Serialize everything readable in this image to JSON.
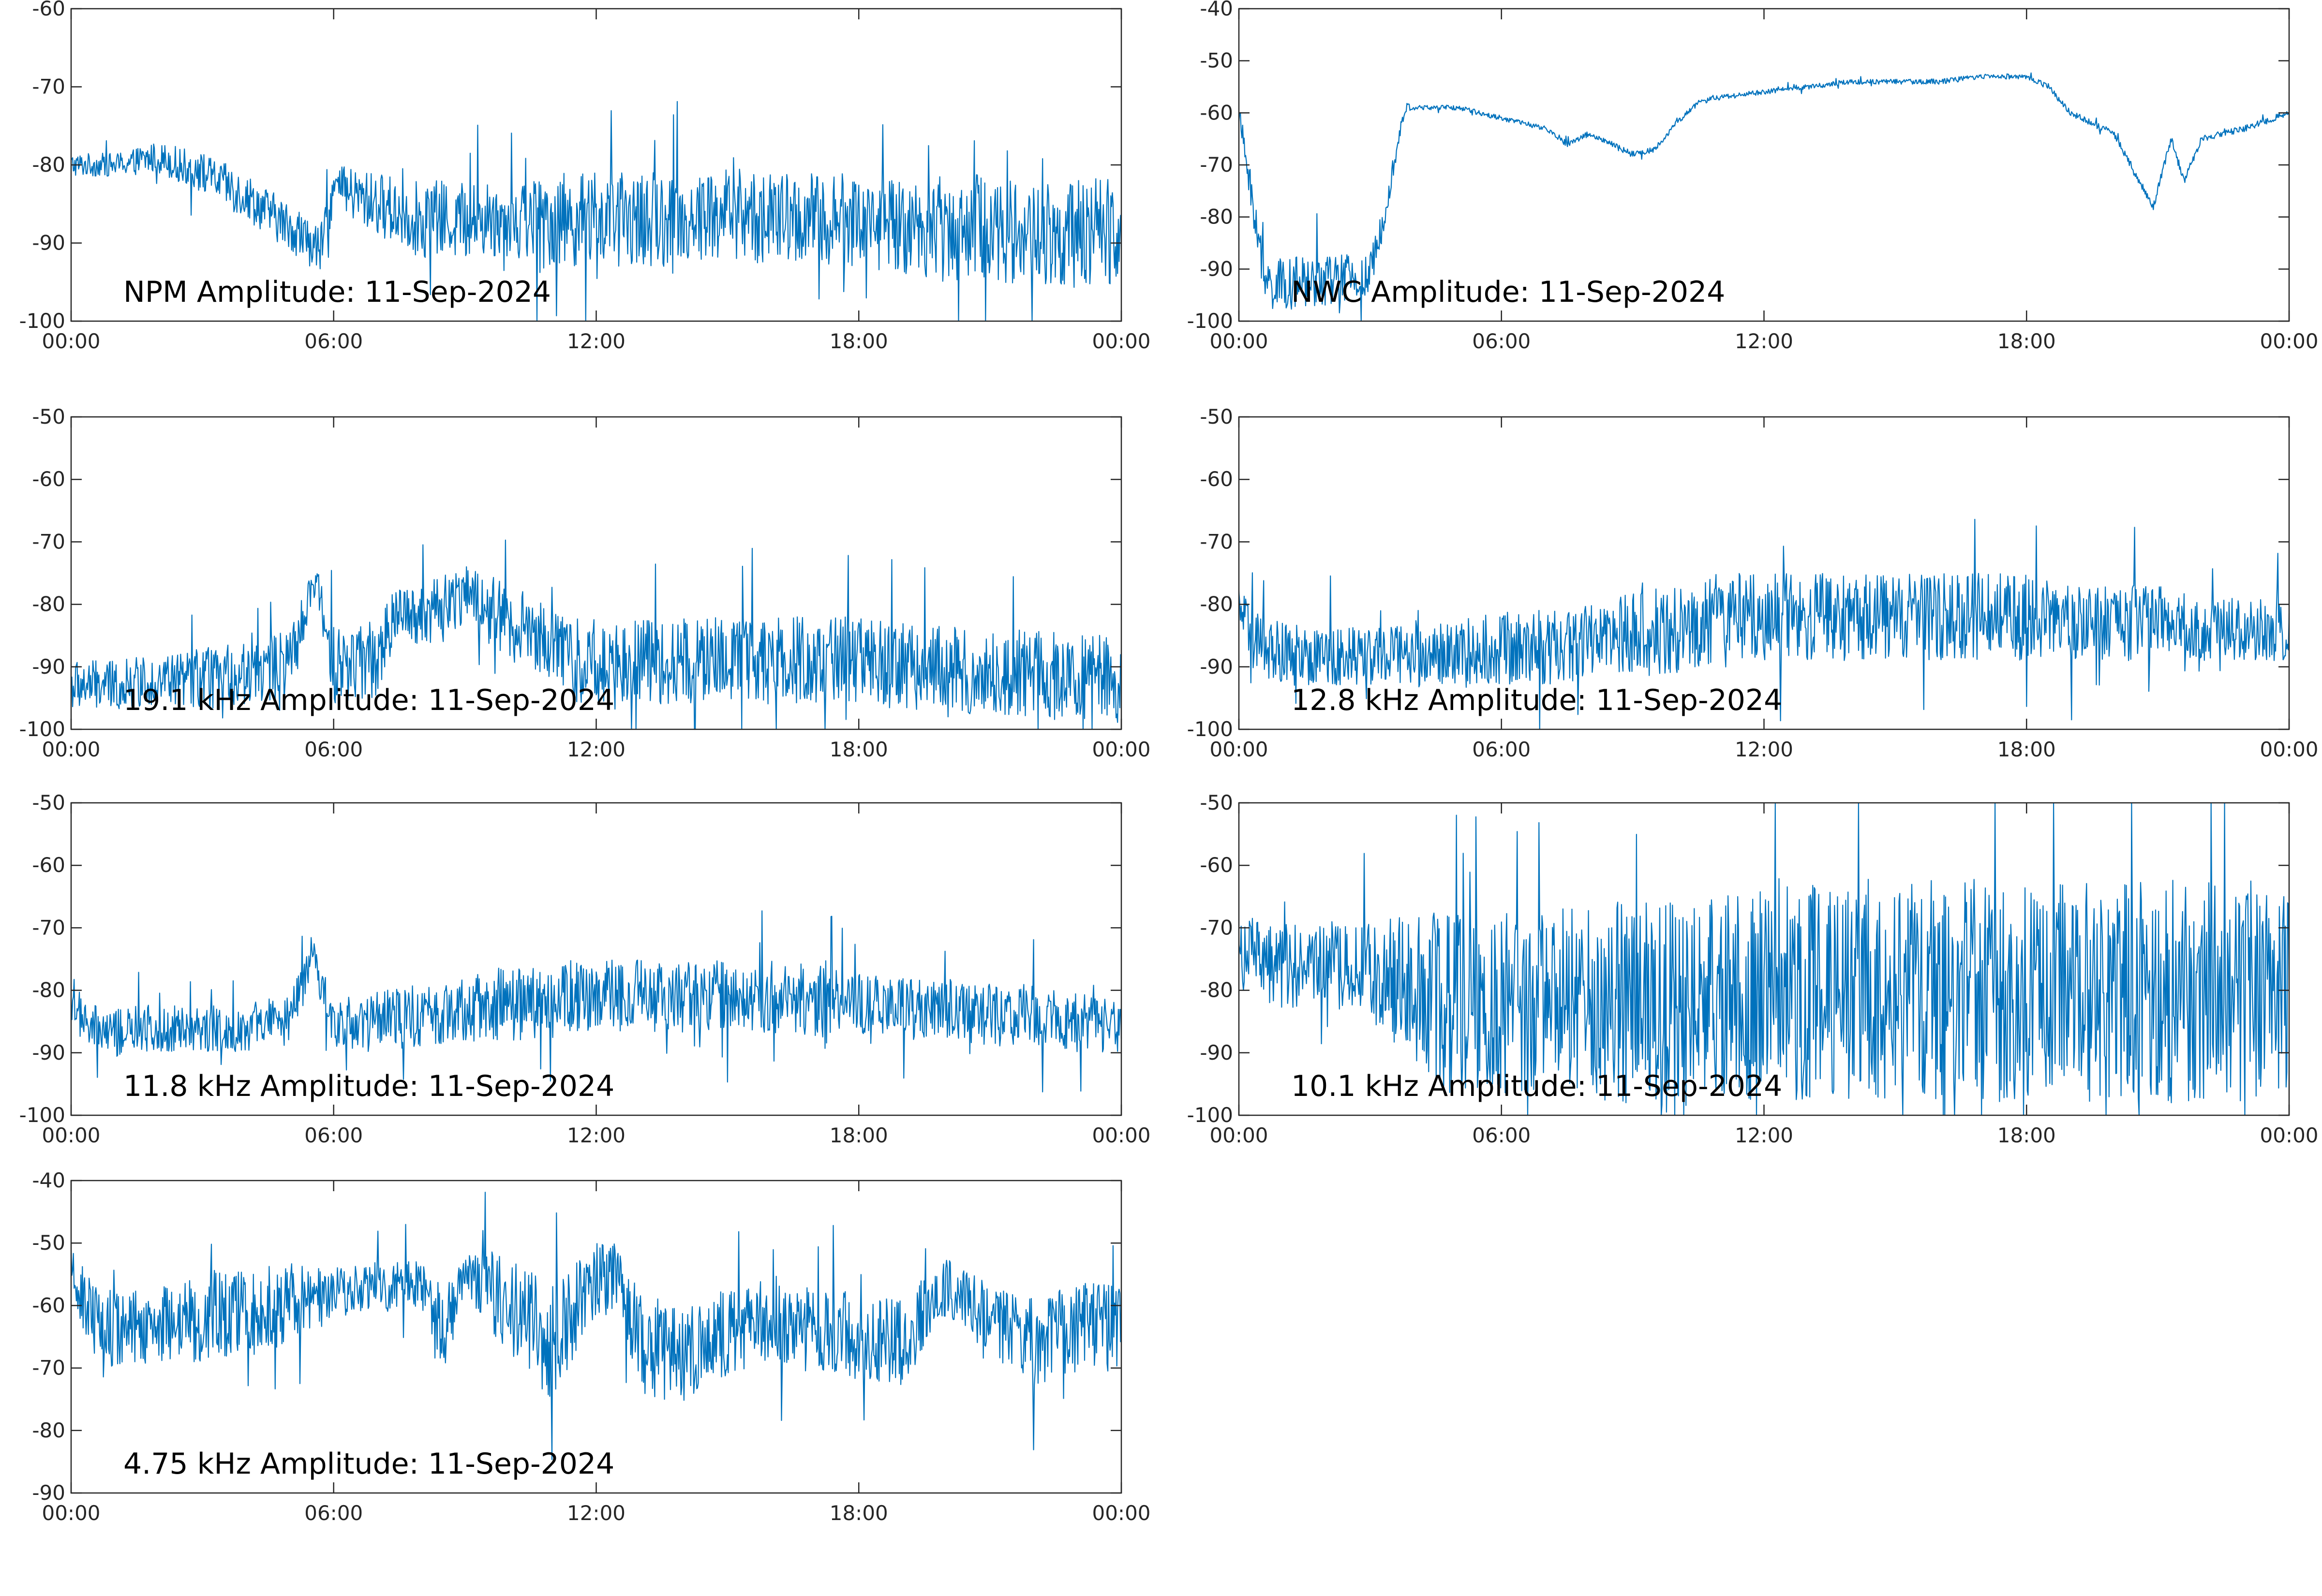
{
  "chart_data": [
    {
      "type": "line",
      "title": "NPM Amplitude: 11-Sep-2024",
      "x_ticks": [
        "00:00",
        "06:00",
        "12:00",
        "18:00",
        "00:00"
      ],
      "x_range_hours": [
        0,
        24
      ],
      "ylim": [
        -100,
        -60
      ],
      "y_ticks": [
        -60,
        -70,
        -80,
        -90,
        -100
      ],
      "series": [
        {
          "color": "#0072BD",
          "x": [
            0,
            1,
            2,
            3,
            4,
            5,
            5.7,
            6,
            7,
            8,
            9,
            10,
            11,
            12,
            13,
            14,
            15,
            16,
            17,
            18,
            19,
            20,
            21,
            22,
            23,
            24
          ],
          "y": [
            -80,
            -80,
            -79,
            -81,
            -84,
            -88,
            -91,
            -83,
            -85,
            -87,
            -87,
            -87,
            -87,
            -87,
            -87,
            -87,
            -86,
            -87,
            -87,
            -87,
            -88,
            -88,
            -88,
            -89,
            -89,
            -88
          ],
          "spread": [
            1.5,
            1.5,
            2,
            2.5,
            3,
            3,
            3,
            3,
            4,
            5,
            5,
            5,
            6,
            6,
            6,
            6,
            6,
            6,
            6,
            6,
            6,
            7,
            7,
            7,
            7,
            7
          ]
        }
      ]
    },
    {
      "type": "line",
      "title": "NWC Amplitude: 11-Sep-2024",
      "x_ticks": [
        "00:00",
        "06:00",
        "12:00",
        "18:00",
        "00:00"
      ],
      "x_range_hours": [
        0,
        24
      ],
      "ylim": [
        -100,
        -40
      ],
      "y_ticks": [
        -40,
        -50,
        -60,
        -70,
        -80,
        -90,
        -100
      ],
      "series": [
        {
          "color": "#0072BD",
          "x": [
            0,
            0.6,
            1,
            2,
            3,
            3.8,
            4,
            5,
            6,
            7,
            7.5,
            8,
            9,
            9.5,
            10,
            10.5,
            11,
            12,
            13,
            14,
            15,
            16,
            17,
            18,
            18.5,
            19,
            20,
            20.5,
            20.9,
            21.3,
            21.6,
            22,
            23,
            24
          ],
          "y": [
            -60,
            -93,
            -93,
            -92,
            -92,
            -59,
            -59,
            -59,
            -61,
            -63,
            -66,
            -64,
            -68,
            -67,
            -62,
            -58,
            -57,
            -56,
            -55,
            -54,
            -54,
            -54,
            -53,
            -53,
            -55,
            -60,
            -64,
            -72,
            -78,
            -65,
            -73,
            -65,
            -63,
            -60
          ],
          "spread": [
            2,
            5,
            5,
            5,
            5,
            1,
            0.5,
            0.5,
            0.5,
            0.5,
            0.6,
            0.6,
            0.6,
            0.5,
            0.5,
            0.5,
            0.5,
            0.5,
            0.5,
            0.5,
            0.5,
            0.5,
            0.5,
            0.5,
            0.6,
            0.6,
            0.6,
            0.8,
            0.8,
            0.8,
            0.8,
            0.6,
            0.6,
            0.6
          ]
        }
      ]
    },
    {
      "type": "line",
      "title": "19.1 kHz Amplitude: 11-Sep-2024",
      "x_ticks": [
        "00:00",
        "06:00",
        "12:00",
        "18:00",
        "00:00"
      ],
      "x_range_hours": [
        0,
        24
      ],
      "ylim": [
        -100,
        -50
      ],
      "y_ticks": [
        -50,
        -60,
        -70,
        -80,
        -90,
        -100
      ],
      "series": [
        {
          "color": "#0072BD",
          "x": [
            0,
            1,
            2,
            3,
            4,
            5,
            5.6,
            6,
            7,
            7.5,
            8,
            9,
            10,
            11,
            11.5,
            12,
            13,
            14,
            15,
            16,
            17,
            18,
            19,
            20,
            21,
            22,
            23,
            24
          ],
          "y": [
            -93,
            -93,
            -92,
            -92,
            -91,
            -90,
            -76,
            -90,
            -89,
            -80,
            -82,
            -78,
            -83,
            -86,
            -89,
            -89,
            -89,
            -89,
            -89,
            -89,
            -89,
            -89,
            -90,
            -90,
            -91,
            -91,
            -92,
            -92
          ],
          "spread": [
            4,
            4,
            4,
            5,
            5,
            6,
            3,
            6,
            6,
            4,
            5,
            5,
            6,
            6,
            7,
            7,
            7,
            7,
            7,
            7,
            7,
            7,
            7,
            7,
            7,
            7,
            7,
            7
          ]
        }
      ]
    },
    {
      "type": "line",
      "title": "12.8 kHz Amplitude: 11-Sep-2024",
      "x_ticks": [
        "00:00",
        "06:00",
        "12:00",
        "18:00",
        "00:00"
      ],
      "x_range_hours": [
        0,
        24
      ],
      "ylim": [
        -100,
        -50
      ],
      "y_ticks": [
        -50,
        -60,
        -70,
        -80,
        -90,
        -100
      ],
      "series": [
        {
          "color": "#0072BD",
          "x": [
            0,
            0.3,
            1,
            2,
            3,
            4,
            5,
            6,
            7,
            8,
            9,
            10,
            11,
            12,
            13,
            14,
            15,
            16,
            17,
            18,
            19,
            20,
            21,
            22,
            23,
            24
          ],
          "y": [
            -80,
            -86,
            -88,
            -88,
            -88,
            -88,
            -88,
            -87,
            -87,
            -86,
            -85,
            -84,
            -82,
            -82,
            -82,
            -82,
            -82,
            -82,
            -82,
            -82,
            -83,
            -83,
            -83,
            -84,
            -84,
            -84
          ],
          "spread": [
            3,
            5,
            5,
            5,
            5,
            5,
            5,
            6,
            6,
            6,
            7,
            7,
            7,
            7,
            7,
            7,
            7,
            7,
            7,
            7,
            6,
            6,
            6,
            5,
            5,
            5
          ]
        }
      ]
    },
    {
      "type": "line",
      "title": "11.8 kHz Amplitude: 11-Sep-2024",
      "x_ticks": [
        "00:00",
        "06:00",
        "12:00",
        "18:00",
        "00:00"
      ],
      "x_range_hours": [
        0,
        24
      ],
      "ylim": [
        -100,
        -50
      ],
      "y_ticks": [
        -50,
        -60,
        -70,
        -80,
        -90,
        -100
      ],
      "series": [
        {
          "color": "#0072BD",
          "x": [
            0,
            0.3,
            1,
            2,
            3,
            4,
            5,
            5.5,
            6,
            7,
            8,
            9,
            10,
            11,
            12,
            13,
            14,
            15,
            16,
            17,
            18,
            19,
            20,
            21,
            22,
            23,
            24
          ],
          "y": [
            -80,
            -86,
            -87,
            -86,
            -86,
            -86,
            -85,
            -74,
            -85,
            -85,
            -84,
            -83,
            -82,
            -82,
            -81,
            -81,
            -81,
            -81,
            -81,
            -82,
            -82,
            -83,
            -83,
            -84,
            -84,
            -85,
            -86
          ],
          "spread": [
            3,
            4,
            4,
            4,
            4,
            4,
            4,
            3,
            4,
            5,
            5,
            5,
            6,
            6,
            6,
            6,
            6,
            6,
            6,
            6,
            5,
            5,
            5,
            5,
            5,
            5,
            4
          ]
        }
      ]
    },
    {
      "type": "line",
      "title": "10.1 kHz Amplitude: 11-Sep-2024",
      "x_ticks": [
        "00:00",
        "06:00",
        "12:00",
        "18:00",
        "00:00"
      ],
      "x_range_hours": [
        0,
        24
      ],
      "ylim": [
        -100,
        -50
      ],
      "y_ticks": [
        -50,
        -60,
        -70,
        -80,
        -90,
        -100
      ],
      "series": [
        {
          "color": "#0072BD",
          "x": [
            0,
            1,
            2,
            3,
            4,
            5,
            6,
            7,
            8,
            9,
            10,
            11,
            12,
            13,
            14,
            15,
            16,
            17,
            18,
            19,
            20,
            21,
            22,
            23,
            24
          ],
          "y": [
            -74,
            -76,
            -76,
            -77,
            -80,
            -82,
            -82,
            -82,
            -82,
            -82,
            -83,
            -82,
            -80,
            -80,
            -80,
            -80,
            -80,
            -80,
            -80,
            -80,
            -80,
            -80,
            -80,
            -80,
            -80
          ],
          "spread": [
            6,
            7,
            7,
            8,
            12,
            15,
            15,
            15,
            16,
            16,
            17,
            17,
            18,
            18,
            18,
            18,
            18,
            18,
            18,
            18,
            18,
            18,
            18,
            18,
            18
          ]
        }
      ]
    },
    {
      "type": "line",
      "title": "4.75 kHz Amplitude: 11-Sep-2024",
      "x_ticks": [
        "00:00",
        "06:00",
        "12:00",
        "18:00",
        "00:00"
      ],
      "x_range_hours": [
        0,
        24
      ],
      "ylim": [
        -90,
        -40
      ],
      "y_ticks": [
        -40,
        -50,
        -60,
        -70,
        -80,
        -90
      ],
      "series": [
        {
          "color": "#0072BD",
          "x": [
            0,
            0.5,
            1,
            2,
            3,
            4,
            5,
            6,
            7,
            8,
            8.5,
            9,
            10,
            11,
            12,
            12.5,
            13,
            14,
            15,
            16,
            17,
            18,
            19,
            20,
            21,
            22,
            23,
            24
          ],
          "y": [
            -55,
            -62,
            -64,
            -63,
            -62,
            -61,
            -60,
            -58,
            -57,
            -57,
            -65,
            -54,
            -60,
            -66,
            -56,
            -55,
            -66,
            -68,
            -64,
            -62,
            -64,
            -65,
            -66,
            -57,
            -62,
            -66,
            -63,
            -64
          ],
          "spread": [
            4,
            6,
            6,
            6,
            7,
            7,
            7,
            4,
            4,
            4,
            8,
            4,
            8,
            9,
            6,
            5,
            8,
            8,
            7,
            7,
            7,
            7,
            7,
            5,
            6,
            7,
            7,
            7
          ]
        }
      ]
    }
  ]
}
